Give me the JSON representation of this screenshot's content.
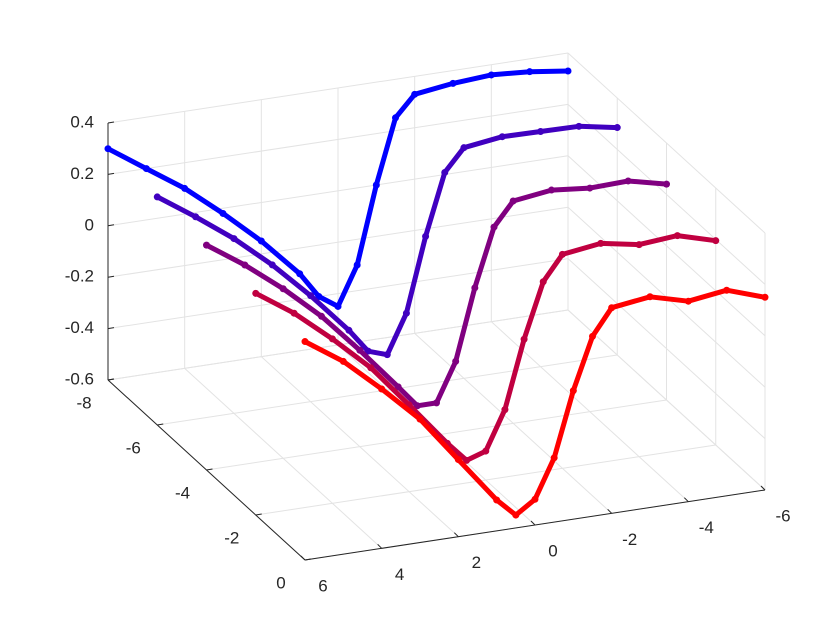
{
  "chart_data": {
    "type": "scatter3d",
    "xlim": [
      -6,
      6
    ],
    "xticks": [
      -6,
      -4,
      -2,
      0,
      2,
      4,
      6
    ],
    "ylim": [
      -8,
      0
    ],
    "yticks": [
      -8,
      -6,
      -4,
      -2,
      0
    ],
    "zlim": [
      -0.6,
      0.4
    ],
    "zticks": [
      -0.6,
      -0.4,
      -0.2,
      0,
      0.2,
      0.4
    ],
    "grid": true,
    "x": [
      6,
      5,
      4,
      3,
      2,
      1,
      0.5,
      0,
      -0.5,
      -1,
      -1.5,
      -2,
      -3,
      -4,
      -5,
      -6
    ],
    "series": [
      {
        "y": -8,
        "color": "#0000ff",
        "values": [
          0.3,
          0.2,
          0.1,
          -0.02,
          -0.15,
          -0.3,
          -0.4,
          -0.45,
          -0.3,
          0,
          0.25,
          0.33,
          0.35,
          0.36,
          0.35,
          0.33
        ]
      },
      {
        "y": -6,
        "color": "#4000c0",
        "values": [
          0.2875,
          0.1875,
          0.08,
          -0.045,
          -0.1875,
          -0.345,
          -0.4375,
          -0.4625,
          -0.3125,
          -0.025,
          0.2125,
          0.2975,
          0.3175,
          0.315,
          0.3125,
          0.285
        ]
      },
      {
        "y": -4,
        "color": "#800080",
        "values": [
          0.275,
          0.175,
          0.06,
          -0.07,
          -0.225,
          -0.39,
          -0.475,
          -0.475,
          -0.325,
          -0.05,
          0.175,
          0.265,
          0.285,
          0.27,
          0.275,
          0.24
        ]
      },
      {
        "y": -2,
        "color": "#c00040",
        "values": [
          0.2625,
          0.1625,
          0.04,
          -0.095,
          -0.2625,
          -0.435,
          -0.5125,
          -0.4875,
          -0.3375,
          -0.075,
          0.1375,
          0.2325,
          0.2525,
          0.225,
          0.2375,
          0.195
        ]
      },
      {
        "y": 0,
        "color": "#ff0000",
        "values": [
          0.25,
          0.15,
          0.02,
          -0.12,
          -0.3,
          -0.48,
          -0.55,
          -0.5,
          -0.35,
          -0.1,
          0.1,
          0.2,
          0.22,
          0.18,
          0.2,
          0.15
        ]
      }
    ]
  }
}
